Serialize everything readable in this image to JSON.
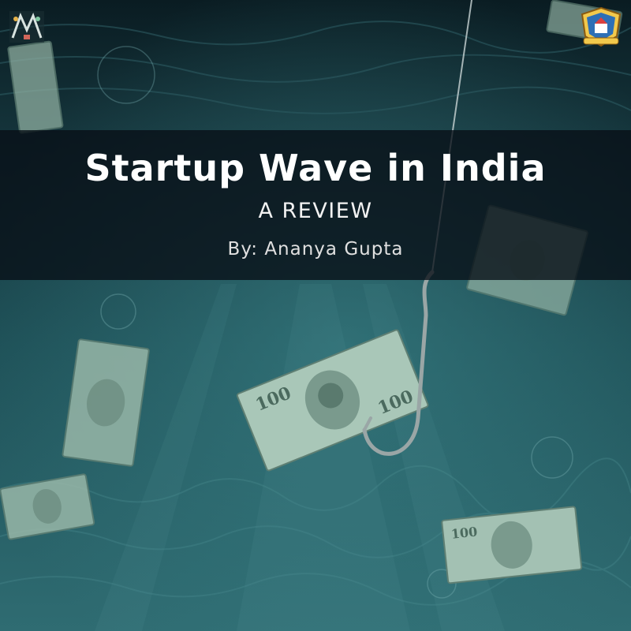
{
  "banner": {
    "title": "Startup Wave in India",
    "subtitle": "A REVIEW",
    "byline": "By: Ananya Gupta"
  },
  "colors": {
    "water_dark": "#0b2328",
    "water_mid": "#1c4e55",
    "water_light": "#3d7f86",
    "banner_overlay": "#080e16",
    "bill_green": "#9fbfae"
  },
  "icons": {
    "left_logo": "club-logo",
    "right_logo": "college-crest",
    "hook": "fish-hook"
  }
}
